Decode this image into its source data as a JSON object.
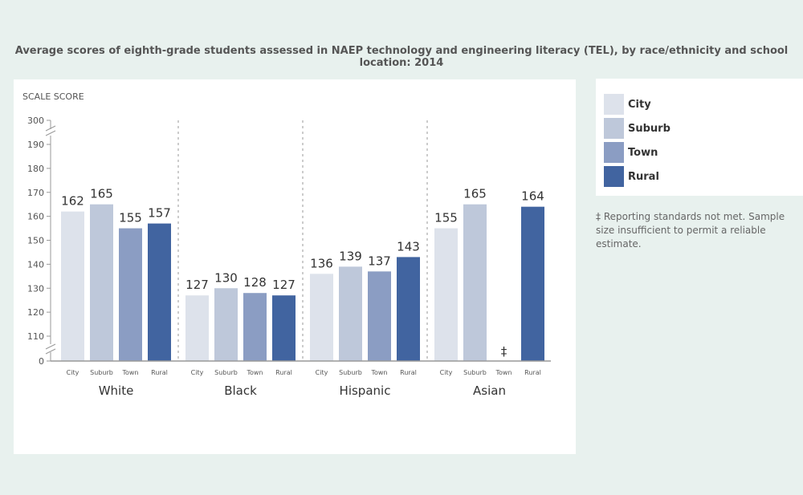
{
  "chart_data": {
    "type": "bar",
    "title": "Average scores of eighth-grade students assessed in NAEP technology and engineering literacy (TEL), by race/ethnicity and school location: 2014",
    "ylabel": "SCALE SCORE",
    "xlabel": "",
    "ylim": [
      110,
      190
    ],
    "axis_break": true,
    "ytick_labels": [
      "0",
      "110",
      "120",
      "130",
      "140",
      "150",
      "160",
      "170",
      "180",
      "190",
      "300"
    ],
    "yticks": [
      110,
      120,
      130,
      140,
      150,
      160,
      170,
      180,
      190
    ],
    "ytop_label": "300",
    "ybottom_label": "0",
    "groups": [
      "White",
      "Black",
      "Hispanic",
      "Asian"
    ],
    "categories": [
      "City",
      "Suburb",
      "Town",
      "Rural"
    ],
    "series": [
      {
        "name": "City",
        "color": "#dde2eb",
        "values": [
          162,
          127,
          136,
          155
        ]
      },
      {
        "name": "Suburb",
        "color": "#bec8da",
        "values": [
          165,
          130,
          139,
          165
        ]
      },
      {
        "name": "Town",
        "color": "#8b9dc3",
        "values": [
          155,
          128,
          137,
          null
        ]
      },
      {
        "name": "Rural",
        "color": "#4164a0",
        "values": [
          157,
          127,
          143,
          164
        ]
      }
    ],
    "data_labels": [
      [
        "162",
        "165",
        "155",
        "157"
      ],
      [
        "127",
        "130",
        "128",
        "127"
      ],
      [
        "136",
        "139",
        "137",
        "143"
      ],
      [
        "155",
        "165",
        "‡",
        "164"
      ]
    ],
    "grid": false,
    "legend_position": "right"
  },
  "legend": {
    "items": [
      {
        "label": "City",
        "color": "#dde2eb"
      },
      {
        "label": "Suburb",
        "color": "#bec8da"
      },
      {
        "label": "Town",
        "color": "#8b9dc3"
      },
      {
        "label": "Rural",
        "color": "#4164a0"
      }
    ]
  },
  "footnote": "‡ Reporting standards not met. Sample size insufficient to permit a reliable estimate."
}
